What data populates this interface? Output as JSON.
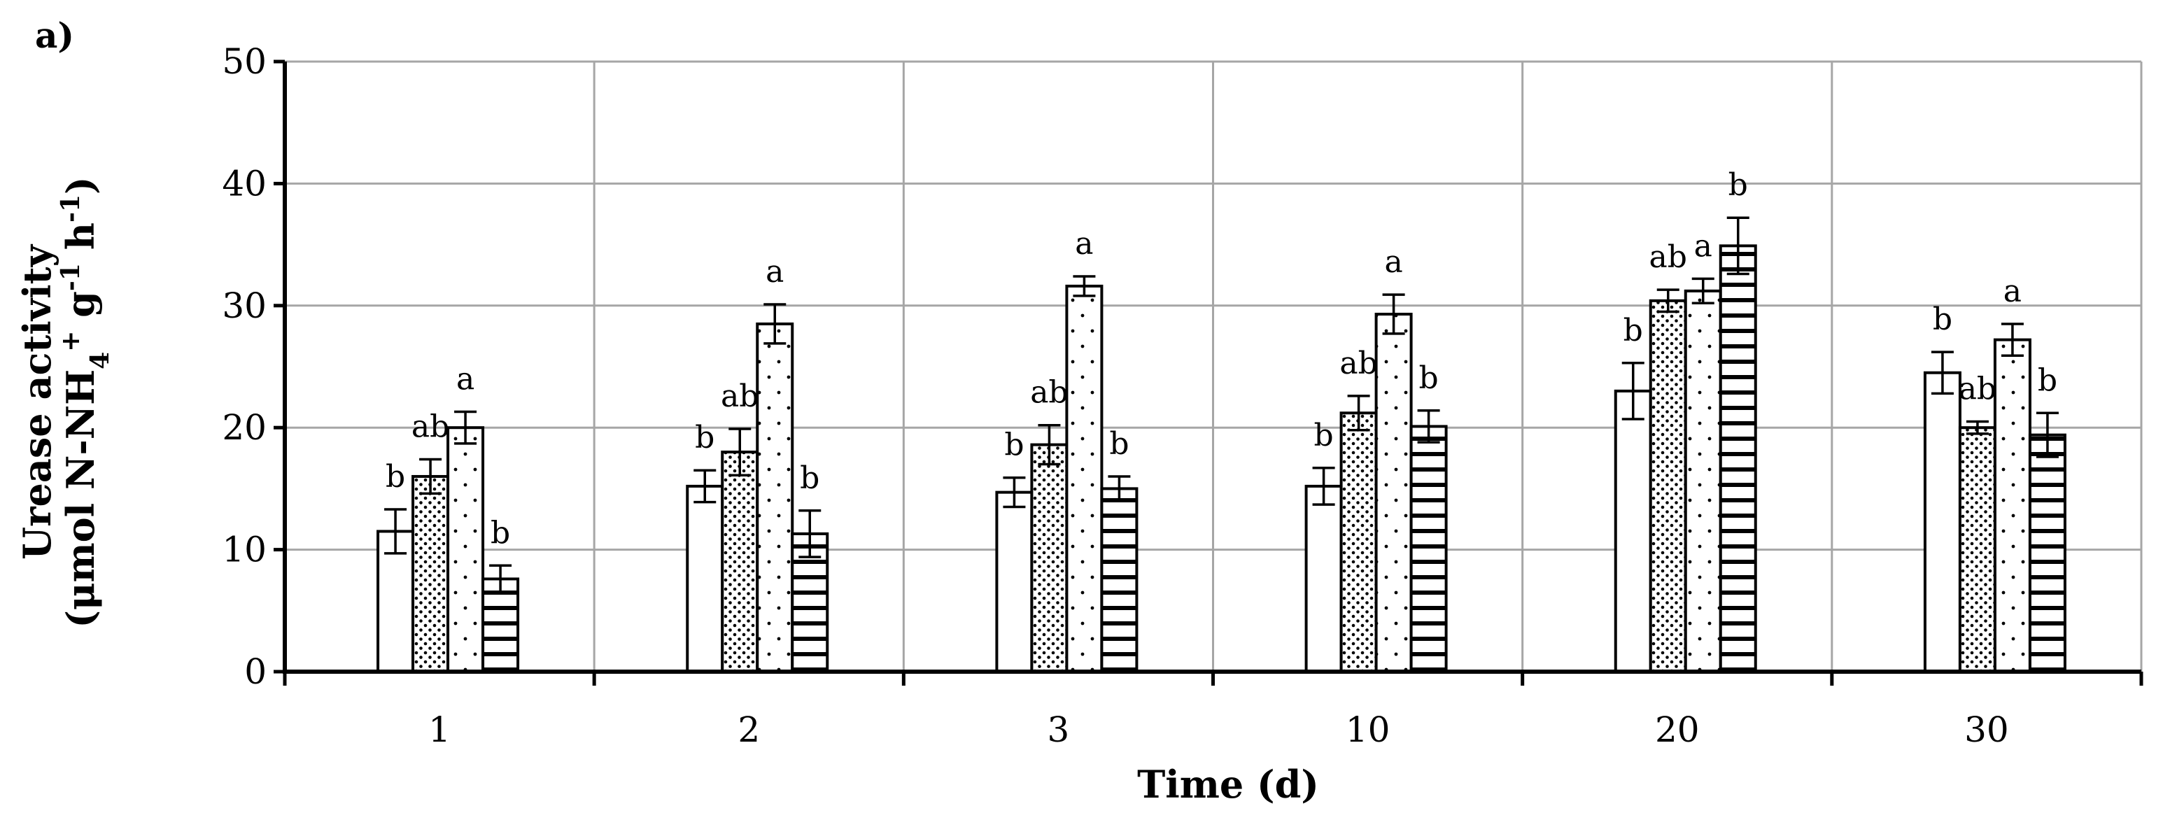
{
  "chart_data": {
    "type": "bar",
    "panel_label": "a)",
    "xlabel": "Time (d)",
    "ylabel_line1": "Urease activity",
    "ylabel_line2_prefix": "(μmol N-NH",
    "ylabel_line2_sub": "4",
    "ylabel_line2_sup": "+",
    "ylabel_line2_mid": " g",
    "ylabel_line2_sup2": "-1",
    "ylabel_line2_end": " h",
    "ylabel_line2_sup3": "-1",
    "ylabel_line2_close": ")",
    "ylim": [
      0,
      50
    ],
    "yticks": [
      "0",
      "10",
      "20",
      "30",
      "40",
      "50"
    ],
    "grid": true,
    "categories": [
      "1",
      "2",
      "3",
      "10",
      "20",
      "30"
    ],
    "series": [
      {
        "pattern": "white",
        "values": [
          11.5,
          15.2,
          14.7,
          15.2,
          23.0,
          24.5
        ],
        "errors": [
          1.8,
          1.3,
          1.2,
          1.5,
          2.3,
          1.7
        ],
        "letters": [
          "b",
          "b",
          "b",
          "b",
          "b",
          "b"
        ]
      },
      {
        "pattern": "dense-dots",
        "values": [
          16.0,
          18.0,
          18.6,
          21.2,
          30.4,
          20.0
        ],
        "errors": [
          1.4,
          1.9,
          1.6,
          1.4,
          0.9,
          0.5
        ],
        "letters": [
          "ab",
          "ab",
          "ab",
          "ab",
          "ab",
          "ab"
        ]
      },
      {
        "pattern": "sparse-dots",
        "values": [
          20.0,
          28.5,
          31.6,
          29.3,
          31.2,
          27.2
        ],
        "errors": [
          1.3,
          1.6,
          0.8,
          1.6,
          1.0,
          1.3
        ],
        "letters": [
          "a",
          "a",
          "a",
          "a",
          "a",
          "a"
        ]
      },
      {
        "pattern": "horizontal-lines",
        "values": [
          7.6,
          11.3,
          15.0,
          20.1,
          34.9,
          19.4
        ],
        "errors": [
          1.1,
          1.9,
          1.0,
          1.3,
          2.3,
          1.8
        ],
        "letters": [
          "b",
          "b",
          "b",
          "b",
          "b",
          "b"
        ]
      }
    ]
  }
}
